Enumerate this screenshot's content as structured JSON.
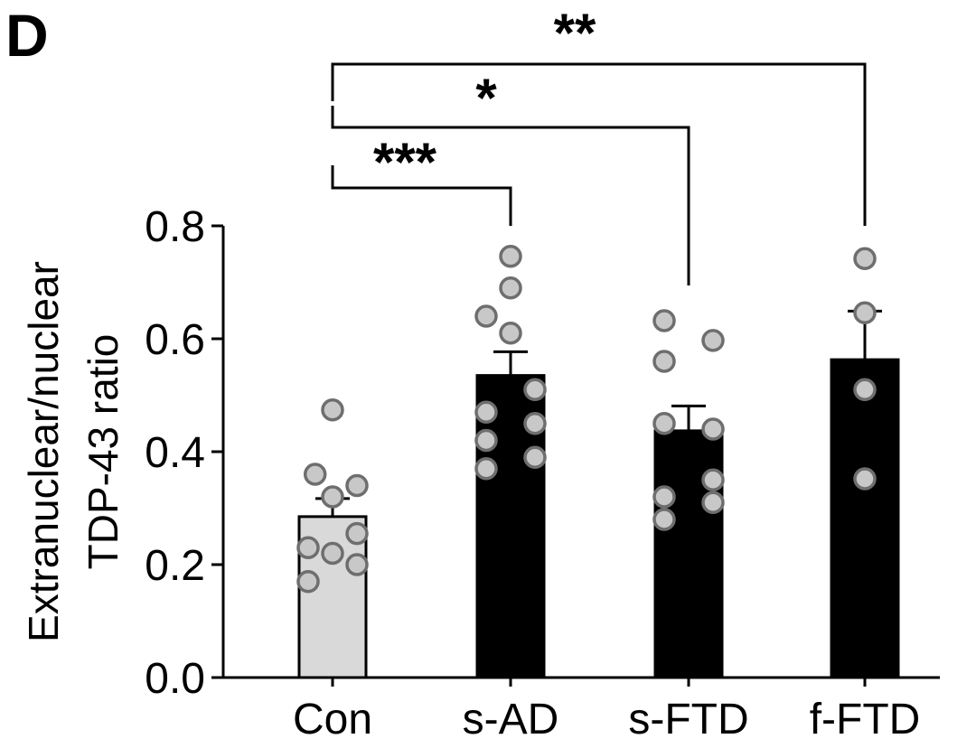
{
  "panel_label": "D",
  "chart_data": {
    "type": "bar",
    "title": "",
    "xlabel": "",
    "ylabel_lines": [
      "Extranuclear/nuclear",
      "TDP-43 ratio"
    ],
    "ylim": [
      0,
      0.8
    ],
    "yticks": [
      "0.0",
      "0.2",
      "0.4",
      "0.6",
      "0.8"
    ],
    "ytick_values": [
      0,
      0.2,
      0.4,
      0.6,
      0.8
    ],
    "grid": false,
    "categories": [
      "Con",
      "s-AD",
      "s-FTD",
      "f-FTD"
    ],
    "values": [
      0.285,
      0.535,
      0.437,
      0.563
    ],
    "sem": [
      0.032,
      0.042,
      0.044,
      0.086
    ],
    "bar_colors": [
      "#d9d9d9",
      "#000000",
      "#000000",
      "#000000"
    ],
    "point_color": "#c8c8c8",
    "point_edge_color": "#6e6e6e",
    "points": [
      [
        0.474,
        0.36,
        0.34,
        0.32,
        0.255,
        0.23,
        0.22,
        0.2,
        0.17
      ],
      [
        0.746,
        0.69,
        0.64,
        0.61,
        0.51,
        0.47,
        0.45,
        0.42,
        0.39,
        0.37
      ],
      [
        0.632,
        0.597,
        0.56,
        0.45,
        0.44,
        0.35,
        0.32,
        0.31,
        0.28
      ],
      [
        0.742,
        0.646,
        0.51,
        0.352
      ]
    ],
    "point_offsets": [
      [
        0,
        -0.2,
        0.28,
        0,
        0.28,
        -0.28,
        0,
        0.28,
        -0.28
      ],
      [
        0,
        0,
        -0.28,
        0,
        0.28,
        -0.28,
        0.28,
        -0.28,
        0.28,
        -0.28
      ],
      [
        -0.28,
        0.28,
        -0.28,
        -0.28,
        0.28,
        0.28,
        -0.28,
        0.28,
        -0.28
      ],
      [
        0,
        0,
        0,
        0
      ]
    ],
    "comparisons": [
      {
        "from": "Con",
        "to": "s-AD",
        "label": "***",
        "level": 1
      },
      {
        "from": "Con",
        "to": "s-FTD",
        "label": "*",
        "level": 2
      },
      {
        "from": "Con",
        "to": "f-FTD",
        "label": "**",
        "level": 3
      }
    ]
  }
}
